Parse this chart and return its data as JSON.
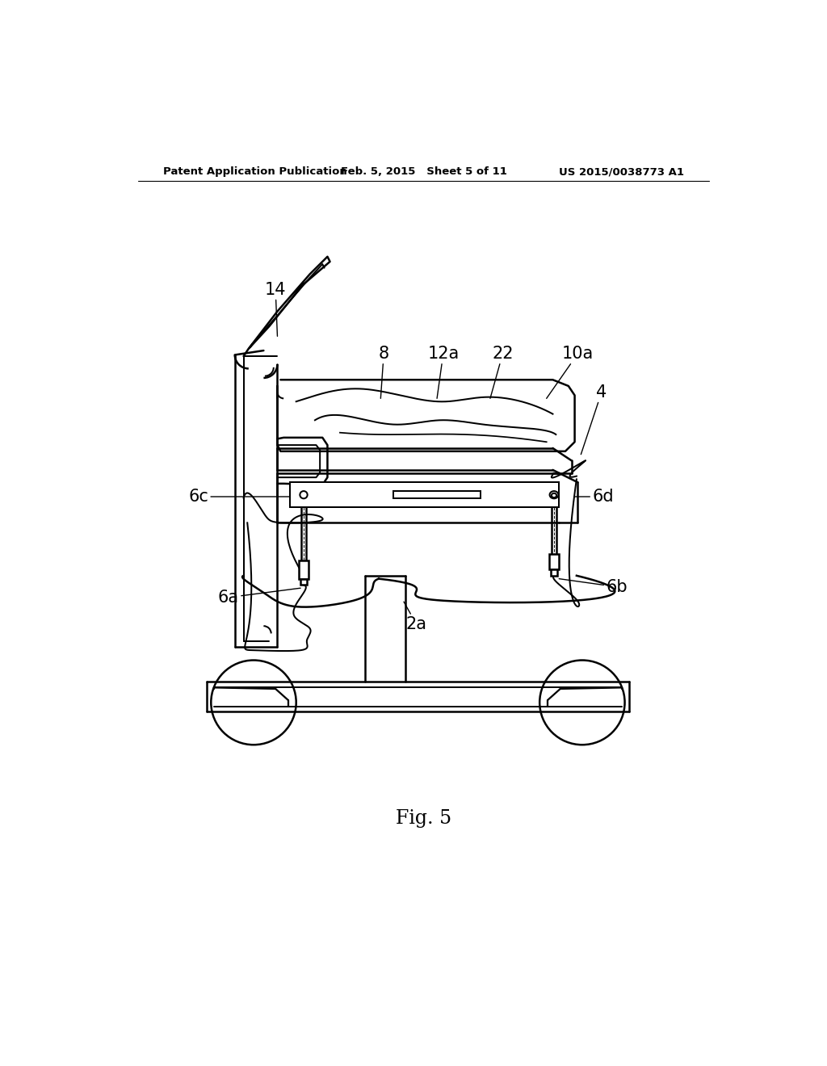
{
  "background_color": "#ffffff",
  "header_left": "Patent Application Publication",
  "header_center": "Feb. 5, 2015   Sheet 5 of 11",
  "header_right": "US 2015/0038773 A1",
  "footer_label": "Fig. 5",
  "line_color": "#000000",
  "line_width": 1.8
}
